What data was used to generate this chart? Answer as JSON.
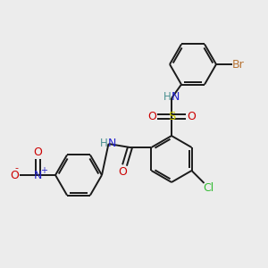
{
  "bg_color": "#ececec",
  "bond_color": "#1a1a1a",
  "bond_width": 1.4,
  "atom_colors": {
    "Br": "#b87333",
    "N": "#2222cc",
    "H": "#4a9090",
    "S": "#cccc00",
    "O": "#cc0000",
    "Cl": "#33bb33",
    "C": "#1a1a1a"
  },
  "font_size": 8.5
}
